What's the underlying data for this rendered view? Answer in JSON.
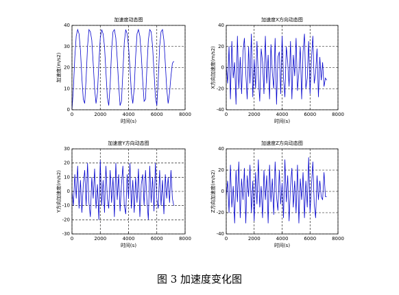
{
  "caption": "图 3  加速度变化图",
  "chart_data": [
    {
      "type": "line",
      "title": "加速度动态图",
      "xlabel": "时间(s)",
      "ylabel": "加速度(m/s2)",
      "x": [
        0,
        100,
        200,
        300,
        400,
        500,
        600,
        700,
        800,
        900,
        1000,
        1100,
        1200,
        1300,
        1400,
        1500,
        1600,
        1700,
        1800,
        1900,
        2000,
        2100,
        2200,
        2300,
        2400,
        2500,
        2600,
        2700,
        2800,
        2900,
        3000,
        3100,
        3200,
        3300,
        3400,
        3500,
        3600,
        3700,
        3800,
        3900,
        4000,
        4100,
        4200,
        4300,
        4400,
        4500,
        4600,
        4700,
        4800,
        4900,
        5000,
        5100,
        5200,
        5300,
        5400,
        5500,
        5600,
        5700,
        5800,
        5900,
        6000,
        6100,
        6200,
        6300,
        6400,
        6500,
        6600,
        6700,
        6800,
        6900,
        7000,
        7100,
        7200
      ],
      "values": [
        0,
        10,
        25,
        35,
        38,
        36,
        28,
        15,
        5,
        3,
        15,
        30,
        38,
        37,
        33,
        22,
        10,
        3,
        8,
        22,
        34,
        38,
        36,
        30,
        18,
        6,
        2,
        12,
        28,
        37,
        38,
        34,
        24,
        12,
        2,
        4,
        18,
        32,
        38,
        36,
        30,
        20,
        8,
        3,
        10,
        25,
        36,
        38,
        35,
        26,
        14,
        4,
        5,
        20,
        33,
        38,
        37,
        30,
        18,
        6,
        2,
        14,
        30,
        37,
        38,
        33,
        22,
        10,
        3,
        8,
        16,
        22,
        23
      ],
      "color": "#0000cc",
      "grid": true,
      "xlim": [
        0,
        8000
      ],
      "xticks": [
        0,
        2000,
        4000,
        6000,
        8000
      ],
      "ylim": [
        0,
        40
      ],
      "yticks": [
        0,
        10,
        20,
        30,
        40
      ]
    },
    {
      "type": "line",
      "title": "加速度X方向动态图",
      "xlabel": "时间(s)",
      "ylabel": "X方向加速度(m/s2)",
      "x": [
        0,
        100,
        200,
        300,
        400,
        500,
        600,
        700,
        800,
        900,
        1000,
        1100,
        1200,
        1300,
        1400,
        1500,
        1600,
        1700,
        1800,
        1900,
        2000,
        2100,
        2200,
        2300,
        2400,
        2500,
        2600,
        2700,
        2800,
        2900,
        3000,
        3100,
        3200,
        3300,
        3400,
        3500,
        3600,
        3700,
        3800,
        3900,
        4000,
        4100,
        4200,
        4300,
        4400,
        4500,
        4600,
        4700,
        4800,
        4900,
        5000,
        5100,
        5200,
        5300,
        5400,
        5500,
        5600,
        5700,
        5800,
        5900,
        6000,
        6100,
        6200,
        6300,
        6400,
        6500,
        6600,
        6700,
        6800,
        6900,
        7000,
        7100,
        7200
      ],
      "values": [
        2,
        -15,
        20,
        -30,
        25,
        -10,
        5,
        -35,
        30,
        -20,
        10,
        -25,
        15,
        28,
        -5,
        -30,
        20,
        -15,
        32,
        -28,
        8,
        -20,
        25,
        -10,
        -32,
        18,
        5,
        -25,
        30,
        -15,
        12,
        -30,
        22,
        -5,
        -20,
        28,
        -35,
        10,
        15,
        -25,
        30,
        -10,
        -28,
        20,
        5,
        -18,
        25,
        -30,
        12,
        -8,
        28,
        -22,
        -5,
        20,
        -30,
        15,
        32,
        -20,
        -10,
        25,
        -25,
        8,
        30,
        -15,
        -5,
        18,
        -28,
        10,
        -12,
        5,
        -18,
        -10,
        -12
      ],
      "color": "#0000cc",
      "grid": true,
      "xlim": [
        0,
        8000
      ],
      "xticks": [
        0,
        2000,
        4000,
        6000,
        8000
      ],
      "ylim": [
        -40,
        40
      ],
      "yticks": [
        -40,
        -20,
        0,
        20,
        40
      ]
    },
    {
      "type": "line",
      "title": "加速度Y方向动态图",
      "xlabel": "时间(s)",
      "ylabel": "Y方向加速度(m/s2)",
      "x": [
        0,
        100,
        200,
        300,
        400,
        500,
        600,
        700,
        800,
        900,
        1000,
        1100,
        1200,
        1300,
        1400,
        1500,
        1600,
        1700,
        1800,
        1900,
        2000,
        2100,
        2200,
        2300,
        2400,
        2500,
        2600,
        2700,
        2800,
        2900,
        3000,
        3100,
        3200,
        3300,
        3400,
        3500,
        3600,
        3700,
        3800,
        3900,
        4000,
        4100,
        4200,
        4300,
        4400,
        4500,
        4600,
        4700,
        4800,
        4900,
        5000,
        5100,
        5200,
        5300,
        5400,
        5500,
        5600,
        5700,
        5800,
        5900,
        6000,
        6100,
        6200,
        6300,
        6400,
        6500,
        6600,
        6700,
        6800,
        6900,
        7000,
        7100,
        7200
      ],
      "values": [
        0,
        -10,
        12,
        -5,
        18,
        -12,
        8,
        -15,
        5,
        15,
        -10,
        20,
        -8,
        -18,
        10,
        -5,
        16,
        -12,
        5,
        -20,
        22,
        -10,
        8,
        -15,
        18,
        -5,
        -12,
        15,
        -8,
        10,
        -18,
        20,
        -6,
        12,
        -14,
        5,
        18,
        -10,
        -16,
        12,
        -5,
        20,
        -12,
        8,
        -15,
        10,
        -8,
        16,
        -18,
        5,
        12,
        -10,
        15,
        -6,
        -20,
        18,
        -8,
        10,
        -14,
        20,
        -5,
        -12,
        15,
        -10,
        8,
        -16,
        12,
        -5,
        10,
        -8,
        15,
        -5,
        -10
      ],
      "color": "#0000cc",
      "grid": true,
      "xlim": [
        0,
        8000
      ],
      "xticks": [
        0,
        2000,
        4000,
        6000,
        8000
      ],
      "ylim": [
        -30,
        30
      ],
      "yticks": [
        -30,
        -20,
        -10,
        0,
        10,
        20,
        30
      ]
    },
    {
      "type": "line",
      "title": "加速度Z方向动态图",
      "xlabel": "时间(s)",
      "ylabel": "Z方向加速度(m/s2)",
      "x": [
        0,
        100,
        200,
        300,
        400,
        500,
        600,
        700,
        800,
        900,
        1000,
        1100,
        1200,
        1300,
        1400,
        1500,
        1600,
        1700,
        1800,
        1900,
        2000,
        2100,
        2200,
        2300,
        2400,
        2500,
        2600,
        2700,
        2800,
        2900,
        3000,
        3100,
        3200,
        3300,
        3400,
        3500,
        3600,
        3700,
        3800,
        3900,
        4000,
        4100,
        4200,
        4300,
        4400,
        4500,
        4600,
        4700,
        4800,
        4900,
        5000,
        5100,
        5200,
        5300,
        5400,
        5500,
        5600,
        5700,
        5800,
        5900,
        6000,
        6100,
        6200,
        6300,
        6400,
        6500,
        6600,
        6700,
        6800,
        6900,
        7000,
        7100,
        7200
      ],
      "values": [
        -5,
        10,
        -20,
        25,
        -15,
        5,
        -30,
        20,
        -10,
        28,
        -25,
        12,
        -8,
        22,
        -30,
        15,
        -5,
        25,
        -20,
        10,
        -28,
        18,
        -12,
        30,
        -15,
        5,
        -25,
        20,
        -8,
        15,
        -30,
        25,
        -10,
        12,
        -22,
        28,
        -5,
        -18,
        20,
        -12,
        8,
        -25,
        30,
        -10,
        15,
        -28,
        5,
        22,
        -15,
        10,
        -20,
        25,
        -30,
        12,
        -8,
        18,
        -25,
        10,
        -15,
        32,
        -20,
        5,
        28,
        -12,
        -25,
        15,
        -8,
        10,
        -5,
        -8,
        18,
        -5,
        -5
      ],
      "color": "#0000cc",
      "grid": true,
      "xlim": [
        0,
        8000
      ],
      "xticks": [
        0,
        2000,
        4000,
        6000,
        8000
      ],
      "ylim": [
        -40,
        40
      ],
      "yticks": [
        -40,
        -20,
        0,
        20,
        40
      ]
    }
  ]
}
